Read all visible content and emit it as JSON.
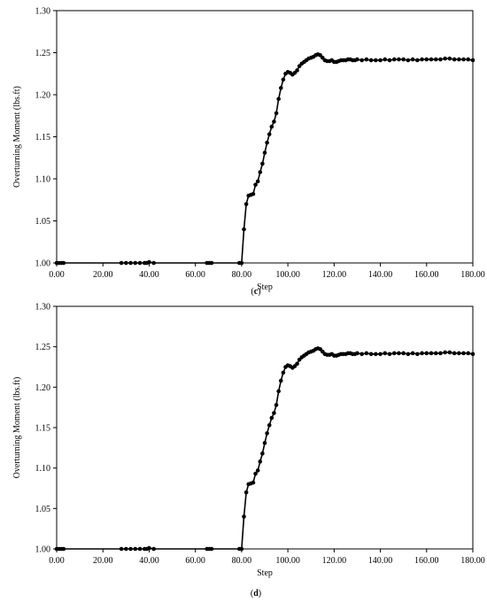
{
  "chart_data": [
    {
      "type": "line",
      "caption": "(c)",
      "xlabel": "Step",
      "ylabel": "Overturning Moment (lbs.ft)",
      "xlim": [
        0,
        180
      ],
      "ylim": [
        1.0,
        1.3
      ],
      "x_ticks": [
        "0.00",
        "20.00",
        "40.00",
        "60.00",
        "80.00",
        "100.00",
        "120.00",
        "140.00",
        "160.00",
        "180.00"
      ],
      "y_ticks": [
        "1.00",
        "1.05",
        "1.10",
        "1.15",
        "1.20",
        "1.25",
        "1.30"
      ],
      "grid": false,
      "marker": "circle",
      "series": [
        {
          "x": [
            0,
            1,
            2,
            3,
            28,
            30,
            32,
            34,
            36,
            38,
            39,
            40,
            42,
            65,
            66,
            67,
            79,
            80,
            81,
            82,
            83,
            84,
            85,
            86,
            87,
            88,
            89,
            90,
            91,
            92,
            93,
            94,
            95,
            96,
            97,
            98,
            99,
            100,
            101,
            102,
            103,
            104,
            105,
            106,
            107,
            108,
            109,
            110,
            111,
            112,
            113,
            114,
            115,
            116,
            117,
            118,
            119,
            120,
            121,
            122,
            123,
            124,
            125,
            126,
            127,
            128,
            129,
            130,
            132,
            134,
            136,
            138,
            140,
            142,
            144,
            146,
            148,
            150,
            152,
            154,
            156,
            158,
            160,
            162,
            164,
            166,
            168,
            170,
            172,
            174,
            176,
            178,
            180
          ],
          "y": [
            1.0,
            1.0,
            1.0,
            1.0,
            1.0,
            1.0,
            1.0,
            1.0,
            1.0,
            1.0,
            1.0,
            1.001,
            1.0,
            1.0,
            1.0,
            1.0,
            1.0,
            1.0,
            1.04,
            1.07,
            1.08,
            1.081,
            1.082,
            1.093,
            1.097,
            1.108,
            1.118,
            1.131,
            1.143,
            1.153,
            1.162,
            1.168,
            1.178,
            1.195,
            1.208,
            1.218,
            1.225,
            1.227,
            1.226,
            1.224,
            1.226,
            1.229,
            1.234,
            1.237,
            1.239,
            1.241,
            1.243,
            1.244,
            1.245,
            1.247,
            1.248,
            1.247,
            1.244,
            1.241,
            1.24,
            1.24,
            1.241,
            1.239,
            1.239,
            1.24,
            1.241,
            1.241,
            1.241,
            1.242,
            1.242,
            1.241,
            1.241,
            1.242,
            1.241,
            1.242,
            1.241,
            1.241,
            1.241,
            1.242,
            1.241,
            1.242,
            1.242,
            1.242,
            1.241,
            1.242,
            1.241,
            1.242,
            1.242,
            1.242,
            1.242,
            1.242,
            1.243,
            1.243,
            1.242,
            1.242,
            1.242,
            1.242,
            1.241
          ]
        }
      ]
    },
    {
      "type": "line",
      "caption": "(d)",
      "xlabel": "Step",
      "ylabel": "Overturning Moment (lbs.ft)",
      "xlim": [
        0,
        180
      ],
      "ylim": [
        1.0,
        1.3
      ],
      "x_ticks": [
        "0.00",
        "20.00",
        "40.00",
        "60.00",
        "80.00",
        "100.00",
        "120.00",
        "140.00",
        "160.00",
        "180.00"
      ],
      "y_ticks": [
        "1.00",
        "1.05",
        "1.10",
        "1.15",
        "1.20",
        "1.25",
        "1.30"
      ],
      "grid": false,
      "marker": "circle",
      "series": [
        {
          "x": [
            0,
            1,
            2,
            3,
            28,
            30,
            32,
            34,
            36,
            38,
            39,
            40,
            42,
            65,
            66,
            67,
            79,
            80,
            81,
            82,
            83,
            84,
            85,
            86,
            87,
            88,
            89,
            90,
            91,
            92,
            93,
            94,
            95,
            96,
            97,
            98,
            99,
            100,
            101,
            102,
            103,
            104,
            105,
            106,
            107,
            108,
            109,
            110,
            111,
            112,
            113,
            114,
            115,
            116,
            117,
            118,
            119,
            120,
            121,
            122,
            123,
            124,
            125,
            126,
            127,
            128,
            129,
            130,
            132,
            134,
            136,
            138,
            140,
            142,
            144,
            146,
            148,
            150,
            152,
            154,
            156,
            158,
            160,
            162,
            164,
            166,
            168,
            170,
            172,
            174,
            176,
            178,
            180
          ],
          "y": [
            1.0,
            1.0,
            1.0,
            1.0,
            1.0,
            1.0,
            1.0,
            1.0,
            1.0,
            1.0,
            1.0,
            1.001,
            1.0,
            1.0,
            1.0,
            1.0,
            1.0,
            1.0,
            1.04,
            1.07,
            1.08,
            1.081,
            1.082,
            1.093,
            1.097,
            1.108,
            1.118,
            1.131,
            1.143,
            1.153,
            1.162,
            1.168,
            1.178,
            1.195,
            1.208,
            1.218,
            1.225,
            1.227,
            1.226,
            1.224,
            1.226,
            1.229,
            1.234,
            1.237,
            1.239,
            1.241,
            1.243,
            1.244,
            1.245,
            1.247,
            1.248,
            1.247,
            1.244,
            1.241,
            1.24,
            1.24,
            1.241,
            1.239,
            1.239,
            1.24,
            1.241,
            1.241,
            1.241,
            1.242,
            1.242,
            1.241,
            1.241,
            1.242,
            1.241,
            1.242,
            1.241,
            1.241,
            1.241,
            1.242,
            1.241,
            1.242,
            1.242,
            1.242,
            1.241,
            1.242,
            1.241,
            1.242,
            1.242,
            1.242,
            1.242,
            1.242,
            1.243,
            1.243,
            1.242,
            1.242,
            1.242,
            1.242,
            1.241
          ]
        }
      ]
    }
  ]
}
